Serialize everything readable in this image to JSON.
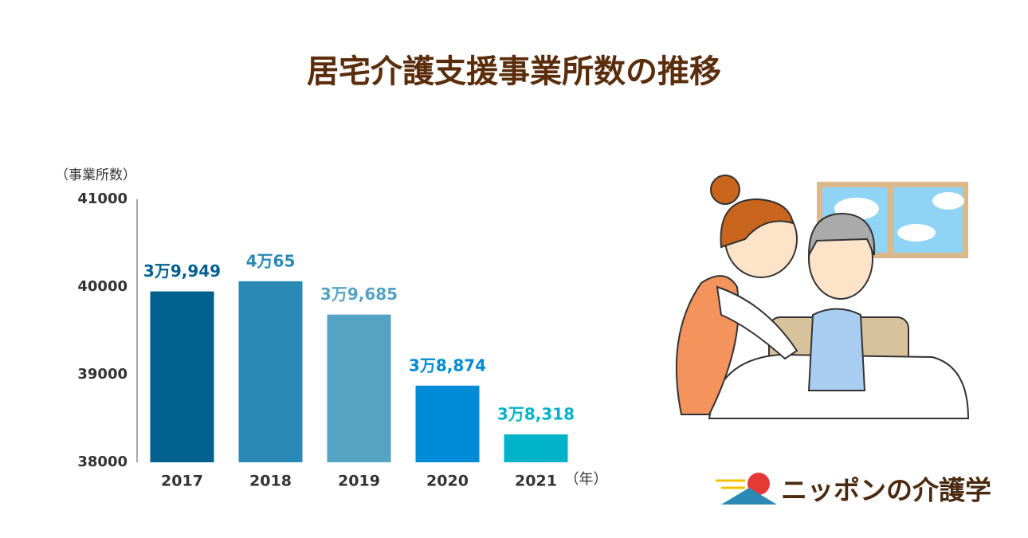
{
  "chart_data": {
    "type": "bar",
    "title": "居宅介護支援事業所数の推移",
    "ylabel": "（事業所数）",
    "xlabel": "（年）",
    "categories": [
      "2017",
      "2018",
      "2019",
      "2020",
      "2021"
    ],
    "values": [
      39949,
      40065,
      39685,
      38874,
      38318
    ],
    "value_labels": [
      "3万9,949",
      "4万65",
      "3万9,685",
      "3万8,874",
      "3万8,318"
    ],
    "colors": [
      "#00608f",
      "#2a8ab5",
      "#55a3c2",
      "#008bd6",
      "#00b3c8"
    ],
    "ylim": [
      38000,
      41000
    ],
    "yticks": [
      38000,
      39000,
      40000,
      41000
    ],
    "grid": false
  },
  "brand": "ニッポンの介護学"
}
